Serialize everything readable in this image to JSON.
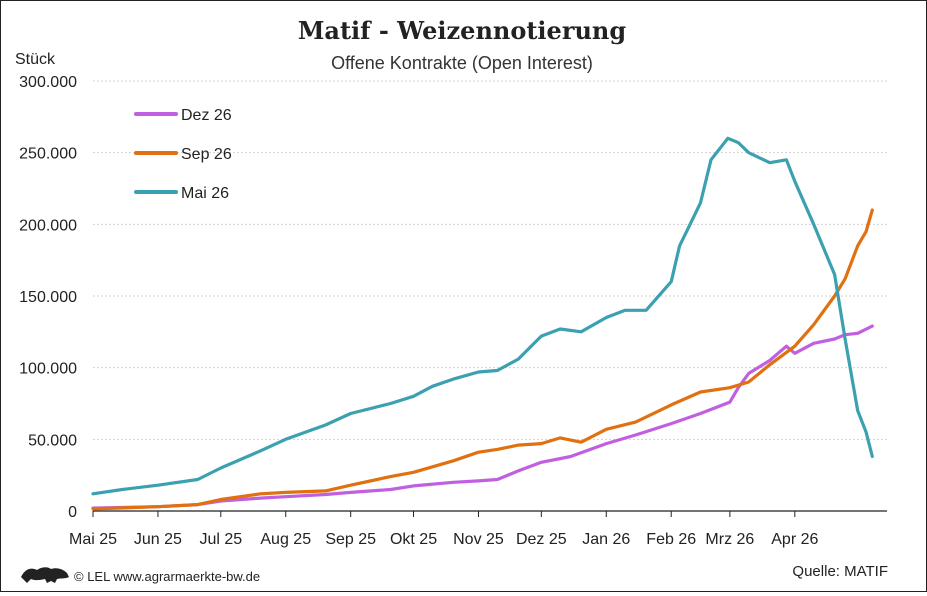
{
  "chart_data": {
    "type": "line",
    "title": "Matif - Weizennotierung",
    "subtitle": "Offene Kontrakte (Open Interest)",
    "ylabel": "Stück",
    "ylim": [
      0,
      300000
    ],
    "yticks": [
      0,
      50000,
      100000,
      150000,
      200000,
      250000,
      300000
    ],
    "ytick_labels": [
      "0",
      "50.000",
      "100.000",
      "150.000",
      "200.000",
      "250.000",
      "300.000"
    ],
    "xlim": [
      "2025-05-01",
      "2026-05-15"
    ],
    "xticks": [
      "2025-05-01",
      "2025-06-01",
      "2025-07-01",
      "2025-08-01",
      "2025-09-01",
      "2025-10-01",
      "2025-11-01",
      "2025-12-01",
      "2026-01-01",
      "2026-02-01",
      "2026-03-01",
      "2026-04-01"
    ],
    "xtick_labels": [
      "Mai 25",
      "Jun 25",
      "Jul 25",
      "Aug 25",
      "Sep 25",
      "Okt 25",
      "Nov 25",
      "Dez 25",
      "Jan 26",
      "Feb 26",
      "Mrz 26",
      "Apr 26"
    ],
    "grid": "horizontal",
    "legend_position": "top-left",
    "series": [
      {
        "name": "Dez 26",
        "color": "#c060e0",
        "points": [
          [
            "2025-05-01",
            2000
          ],
          [
            "2025-06-01",
            3000
          ],
          [
            "2025-06-20",
            4500
          ],
          [
            "2025-07-01",
            7000
          ],
          [
            "2025-07-20",
            9000
          ],
          [
            "2025-08-01",
            10000
          ],
          [
            "2025-08-20",
            11500
          ],
          [
            "2025-09-01",
            13000
          ],
          [
            "2025-09-20",
            15000
          ],
          [
            "2025-10-01",
            17500
          ],
          [
            "2025-10-20",
            20000
          ],
          [
            "2025-11-01",
            21000
          ],
          [
            "2025-11-10",
            22000
          ],
          [
            "2025-11-20",
            28000
          ],
          [
            "2025-12-01",
            34000
          ],
          [
            "2025-12-15",
            38000
          ],
          [
            "2026-01-01",
            47000
          ],
          [
            "2026-01-15",
            53000
          ],
          [
            "2026-02-01",
            61000
          ],
          [
            "2026-02-15",
            68000
          ],
          [
            "2026-03-01",
            76000
          ],
          [
            "2026-03-05",
            86000
          ],
          [
            "2026-03-10",
            96000
          ],
          [
            "2026-03-20",
            105000
          ],
          [
            "2026-03-28",
            115000
          ],
          [
            "2026-04-01",
            110000
          ],
          [
            "2026-04-10",
            117000
          ],
          [
            "2026-04-20",
            120000
          ],
          [
            "2026-04-25",
            123000
          ],
          [
            "2026-05-01",
            124000
          ],
          [
            "2026-05-08",
            129000
          ]
        ]
      },
      {
        "name": "Sep 26",
        "color": "#e07010",
        "points": [
          [
            "2025-05-01",
            1500
          ],
          [
            "2025-06-01",
            3000
          ],
          [
            "2025-06-20",
            4500
          ],
          [
            "2025-07-01",
            8000
          ],
          [
            "2025-07-20",
            12000
          ],
          [
            "2025-08-01",
            13000
          ],
          [
            "2025-08-20",
            14000
          ],
          [
            "2025-09-01",
            18000
          ],
          [
            "2025-09-20",
            24000
          ],
          [
            "2025-10-01",
            27000
          ],
          [
            "2025-10-20",
            35000
          ],
          [
            "2025-11-01",
            41000
          ],
          [
            "2025-11-10",
            43000
          ],
          [
            "2025-11-20",
            46000
          ],
          [
            "2025-12-01",
            47000
          ],
          [
            "2025-12-10",
            51000
          ],
          [
            "2025-12-20",
            48000
          ],
          [
            "2026-01-01",
            57000
          ],
          [
            "2026-01-15",
            62000
          ],
          [
            "2026-02-01",
            74000
          ],
          [
            "2026-02-15",
            83000
          ],
          [
            "2026-03-01",
            86000
          ],
          [
            "2026-03-10",
            90000
          ],
          [
            "2026-03-20",
            102000
          ],
          [
            "2026-04-01",
            115000
          ],
          [
            "2026-04-10",
            130000
          ],
          [
            "2026-04-20",
            150000
          ],
          [
            "2026-04-25",
            162000
          ],
          [
            "2026-05-01",
            185000
          ],
          [
            "2026-05-05",
            195000
          ],
          [
            "2026-05-08",
            210000
          ]
        ]
      },
      {
        "name": "Mai 26",
        "color": "#3ba0b0",
        "points": [
          [
            "2025-05-01",
            12000
          ],
          [
            "2025-05-15",
            15000
          ],
          [
            "2025-06-01",
            18000
          ],
          [
            "2025-06-20",
            22000
          ],
          [
            "2025-07-01",
            30000
          ],
          [
            "2025-07-20",
            42000
          ],
          [
            "2025-08-01",
            50000
          ],
          [
            "2025-08-20",
            60000
          ],
          [
            "2025-09-01",
            68000
          ],
          [
            "2025-09-20",
            75000
          ],
          [
            "2025-10-01",
            80000
          ],
          [
            "2025-10-10",
            87000
          ],
          [
            "2025-10-20",
            92000
          ],
          [
            "2025-11-01",
            97000
          ],
          [
            "2025-11-10",
            98000
          ],
          [
            "2025-11-20",
            106000
          ],
          [
            "2025-12-01",
            122000
          ],
          [
            "2025-12-10",
            127000
          ],
          [
            "2025-12-20",
            125000
          ],
          [
            "2026-01-01",
            135000
          ],
          [
            "2026-01-10",
            140000
          ],
          [
            "2026-01-20",
            140000
          ],
          [
            "2026-02-01",
            160000
          ],
          [
            "2026-02-05",
            185000
          ],
          [
            "2026-02-10",
            200000
          ],
          [
            "2026-02-15",
            215000
          ],
          [
            "2026-02-20",
            245000
          ],
          [
            "2026-02-28",
            260000
          ],
          [
            "2026-03-05",
            257000
          ],
          [
            "2026-03-10",
            250000
          ],
          [
            "2026-03-20",
            243000
          ],
          [
            "2026-03-28",
            245000
          ],
          [
            "2026-04-01",
            230000
          ],
          [
            "2026-04-10",
            200000
          ],
          [
            "2026-04-20",
            165000
          ],
          [
            "2026-04-25",
            120000
          ],
          [
            "2026-05-01",
            70000
          ],
          [
            "2026-05-05",
            55000
          ],
          [
            "2026-05-08",
            38000
          ]
        ]
      }
    ]
  },
  "footer": {
    "credit": "© LEL www.agrarmaerkte-bw.de",
    "source": "Quelle:  MATIF"
  }
}
